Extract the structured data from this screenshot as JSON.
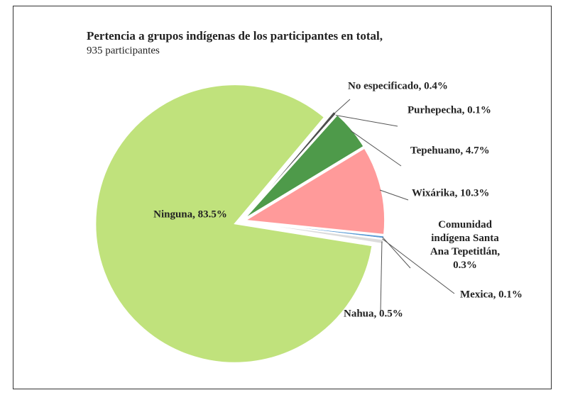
{
  "chart_data": {
    "type": "pie",
    "title": "Pertencia a grupos indígenas de los participantes en total,",
    "subtitle": "935 participantes",
    "values": [
      0.4,
      0.1,
      4.7,
      10.3,
      0.3,
      0.1,
      0.5,
      83.5
    ],
    "value_labels": [
      "No especificado, 0.4%",
      "Purhepecha, 0.1%",
      "Tepehuano, 4.7%",
      "Wixárika, 10.3%",
      "Comunidad indígena Santa Ana Tepetitlán, 0.3%",
      "Mexica, 0.1%",
      "Nahua, 0.5%",
      "Ninguna, 83.5%"
    ],
    "colors": [
      "#4d4d4d",
      "#f4b6c2",
      "#4e9a4a",
      "#ff9a9a",
      "#5b9bd5",
      "#a9c4e0",
      "#dcdcdc",
      "#c0e27c"
    ]
  }
}
